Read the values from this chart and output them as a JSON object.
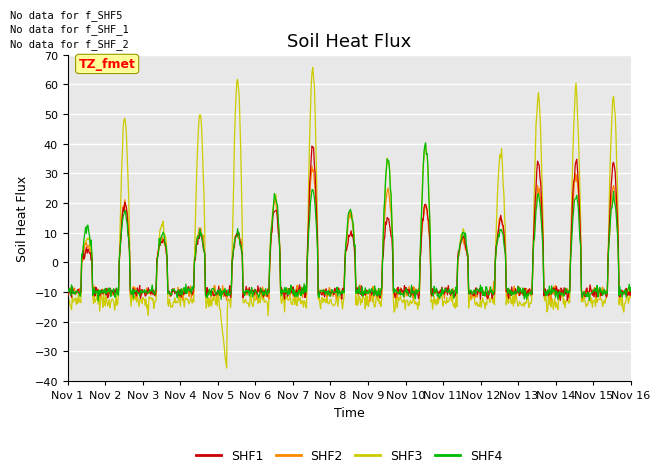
{
  "title": "Soil Heat Flux",
  "xlabel": "Time",
  "ylabel": "Soil Heat Flux",
  "ylim": [
    -40,
    70
  ],
  "yticks": [
    -40,
    -30,
    -20,
    -10,
    0,
    10,
    20,
    30,
    40,
    50,
    60,
    70
  ],
  "xlim": [
    0,
    15
  ],
  "xtick_labels": [
    "Nov 1",
    "Nov 2",
    "Nov 3",
    "Nov 4",
    "Nov 5",
    "Nov 6",
    "Nov 7",
    "Nov 8",
    "Nov 9",
    "Nov 10",
    "Nov 11",
    "Nov 12",
    "Nov 13",
    "Nov 14",
    "Nov 15",
    "Nov 16"
  ],
  "xtick_positions": [
    0,
    1,
    2,
    3,
    4,
    5,
    6,
    7,
    8,
    9,
    10,
    11,
    12,
    13,
    14,
    15
  ],
  "colors": {
    "SHF1": "#cc0000",
    "SHF2": "#ff8800",
    "SHF3": "#cccc00",
    "SHF4": "#00bb00"
  },
  "legend_labels": [
    "SHF1",
    "SHF2",
    "SHF3",
    "SHF4"
  ],
  "no_data_texts": [
    "No data for f_SHF5",
    "No data for f_SHF_1",
    "No data for f_SHF_2"
  ],
  "tz_label": "TZ_fmet",
  "plot_bg": "#e8e8e8",
  "title_fontsize": 13,
  "axis_label_fontsize": 9,
  "tick_fontsize": 8,
  "legend_fontsize": 9,
  "day_amplitudes_shf3": [
    8,
    48,
    12,
    50,
    62,
    22,
    65,
    17,
    35,
    40,
    10,
    37,
    55,
    58,
    55
  ],
  "day_amplitudes_shf1": [
    5,
    20,
    8,
    10,
    10,
    18,
    38,
    10,
    15,
    20,
    8,
    15,
    33,
    34,
    33
  ],
  "day_amplitudes_shf2": [
    6,
    20,
    8,
    12,
    10,
    20,
    32,
    16,
    25,
    20,
    8,
    15,
    25,
    30,
    25
  ],
  "day_amplitudes_shf4": [
    12,
    17,
    10,
    10,
    10,
    22,
    24,
    17,
    35,
    40,
    10,
    11,
    22,
    22,
    22
  ]
}
